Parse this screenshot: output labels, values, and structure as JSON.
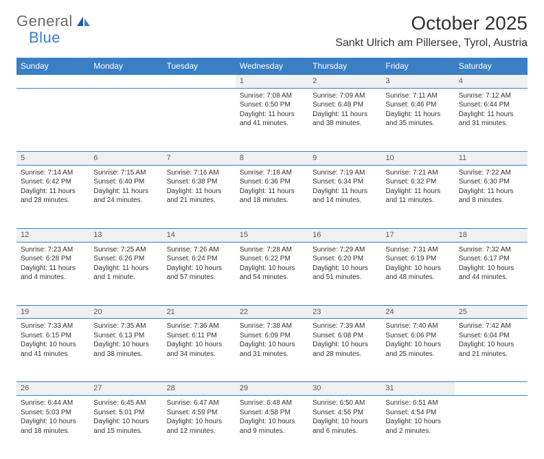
{
  "brand": {
    "part1": "General",
    "part2": "Blue"
  },
  "title": "October 2025",
  "location": "Sankt Ulrich am Pillersee, Tyrol, Austria",
  "colors": {
    "accent": "#3a7fc4",
    "daynum_bg": "#eef0f2",
    "text": "#323232",
    "logo_gray": "#6b6b6b"
  },
  "day_headers": [
    "Sunday",
    "Monday",
    "Tuesday",
    "Wednesday",
    "Thursday",
    "Friday",
    "Saturday"
  ],
  "weeks": [
    [
      null,
      null,
      null,
      {
        "n": "1",
        "sr": "Sunrise: 7:08 AM",
        "ss": "Sunset: 6:50 PM",
        "d1": "Daylight: 11 hours",
        "d2": "and 41 minutes."
      },
      {
        "n": "2",
        "sr": "Sunrise: 7:09 AM",
        "ss": "Sunset: 6:48 PM",
        "d1": "Daylight: 11 hours",
        "d2": "and 38 minutes."
      },
      {
        "n": "3",
        "sr": "Sunrise: 7:11 AM",
        "ss": "Sunset: 6:46 PM",
        "d1": "Daylight: 11 hours",
        "d2": "and 35 minutes."
      },
      {
        "n": "4",
        "sr": "Sunrise: 7:12 AM",
        "ss": "Sunset: 6:44 PM",
        "d1": "Daylight: 11 hours",
        "d2": "and 31 minutes."
      }
    ],
    [
      {
        "n": "5",
        "sr": "Sunrise: 7:14 AM",
        "ss": "Sunset: 6:42 PM",
        "d1": "Daylight: 11 hours",
        "d2": "and 28 minutes."
      },
      {
        "n": "6",
        "sr": "Sunrise: 7:15 AM",
        "ss": "Sunset: 6:40 PM",
        "d1": "Daylight: 11 hours",
        "d2": "and 24 minutes."
      },
      {
        "n": "7",
        "sr": "Sunrise: 7:16 AM",
        "ss": "Sunset: 6:38 PM",
        "d1": "Daylight: 11 hours",
        "d2": "and 21 minutes."
      },
      {
        "n": "8",
        "sr": "Sunrise: 7:18 AM",
        "ss": "Sunset: 6:36 PM",
        "d1": "Daylight: 11 hours",
        "d2": "and 18 minutes."
      },
      {
        "n": "9",
        "sr": "Sunrise: 7:19 AM",
        "ss": "Sunset: 6:34 PM",
        "d1": "Daylight: 11 hours",
        "d2": "and 14 minutes."
      },
      {
        "n": "10",
        "sr": "Sunrise: 7:21 AM",
        "ss": "Sunset: 6:32 PM",
        "d1": "Daylight: 11 hours",
        "d2": "and 11 minutes."
      },
      {
        "n": "11",
        "sr": "Sunrise: 7:22 AM",
        "ss": "Sunset: 6:30 PM",
        "d1": "Daylight: 11 hours",
        "d2": "and 8 minutes."
      }
    ],
    [
      {
        "n": "12",
        "sr": "Sunrise: 7:23 AM",
        "ss": "Sunset: 6:28 PM",
        "d1": "Daylight: 11 hours",
        "d2": "and 4 minutes."
      },
      {
        "n": "13",
        "sr": "Sunrise: 7:25 AM",
        "ss": "Sunset: 6:26 PM",
        "d1": "Daylight: 11 hours",
        "d2": "and 1 minute."
      },
      {
        "n": "14",
        "sr": "Sunrise: 7:26 AM",
        "ss": "Sunset: 6:24 PM",
        "d1": "Daylight: 10 hours",
        "d2": "and 57 minutes."
      },
      {
        "n": "15",
        "sr": "Sunrise: 7:28 AM",
        "ss": "Sunset: 6:22 PM",
        "d1": "Daylight: 10 hours",
        "d2": "and 54 minutes."
      },
      {
        "n": "16",
        "sr": "Sunrise: 7:29 AM",
        "ss": "Sunset: 6:20 PM",
        "d1": "Daylight: 10 hours",
        "d2": "and 51 minutes."
      },
      {
        "n": "17",
        "sr": "Sunrise: 7:31 AM",
        "ss": "Sunset: 6:19 PM",
        "d1": "Daylight: 10 hours",
        "d2": "and 48 minutes."
      },
      {
        "n": "18",
        "sr": "Sunrise: 7:32 AM",
        "ss": "Sunset: 6:17 PM",
        "d1": "Daylight: 10 hours",
        "d2": "and 44 minutes."
      }
    ],
    [
      {
        "n": "19",
        "sr": "Sunrise: 7:33 AM",
        "ss": "Sunset: 6:15 PM",
        "d1": "Daylight: 10 hours",
        "d2": "and 41 minutes."
      },
      {
        "n": "20",
        "sr": "Sunrise: 7:35 AM",
        "ss": "Sunset: 6:13 PM",
        "d1": "Daylight: 10 hours",
        "d2": "and 38 minutes."
      },
      {
        "n": "21",
        "sr": "Sunrise: 7:36 AM",
        "ss": "Sunset: 6:11 PM",
        "d1": "Daylight: 10 hours",
        "d2": "and 34 minutes."
      },
      {
        "n": "22",
        "sr": "Sunrise: 7:38 AM",
        "ss": "Sunset: 6:09 PM",
        "d1": "Daylight: 10 hours",
        "d2": "and 31 minutes."
      },
      {
        "n": "23",
        "sr": "Sunrise: 7:39 AM",
        "ss": "Sunset: 6:08 PM",
        "d1": "Daylight: 10 hours",
        "d2": "and 28 minutes."
      },
      {
        "n": "24",
        "sr": "Sunrise: 7:40 AM",
        "ss": "Sunset: 6:06 PM",
        "d1": "Daylight: 10 hours",
        "d2": "and 25 minutes."
      },
      {
        "n": "25",
        "sr": "Sunrise: 7:42 AM",
        "ss": "Sunset: 6:04 PM",
        "d1": "Daylight: 10 hours",
        "d2": "and 21 minutes."
      }
    ],
    [
      {
        "n": "26",
        "sr": "Sunrise: 6:44 AM",
        "ss": "Sunset: 5:03 PM",
        "d1": "Daylight: 10 hours",
        "d2": "and 18 minutes."
      },
      {
        "n": "27",
        "sr": "Sunrise: 6:45 AM",
        "ss": "Sunset: 5:01 PM",
        "d1": "Daylight: 10 hours",
        "d2": "and 15 minutes."
      },
      {
        "n": "28",
        "sr": "Sunrise: 6:47 AM",
        "ss": "Sunset: 4:59 PM",
        "d1": "Daylight: 10 hours",
        "d2": "and 12 minutes."
      },
      {
        "n": "29",
        "sr": "Sunrise: 6:48 AM",
        "ss": "Sunset: 4:58 PM",
        "d1": "Daylight: 10 hours",
        "d2": "and 9 minutes."
      },
      {
        "n": "30",
        "sr": "Sunrise: 6:50 AM",
        "ss": "Sunset: 4:56 PM",
        "d1": "Daylight: 10 hours",
        "d2": "and 6 minutes."
      },
      {
        "n": "31",
        "sr": "Sunrise: 6:51 AM",
        "ss": "Sunset: 4:54 PM",
        "d1": "Daylight: 10 hours",
        "d2": "and 2 minutes."
      },
      null
    ]
  ]
}
